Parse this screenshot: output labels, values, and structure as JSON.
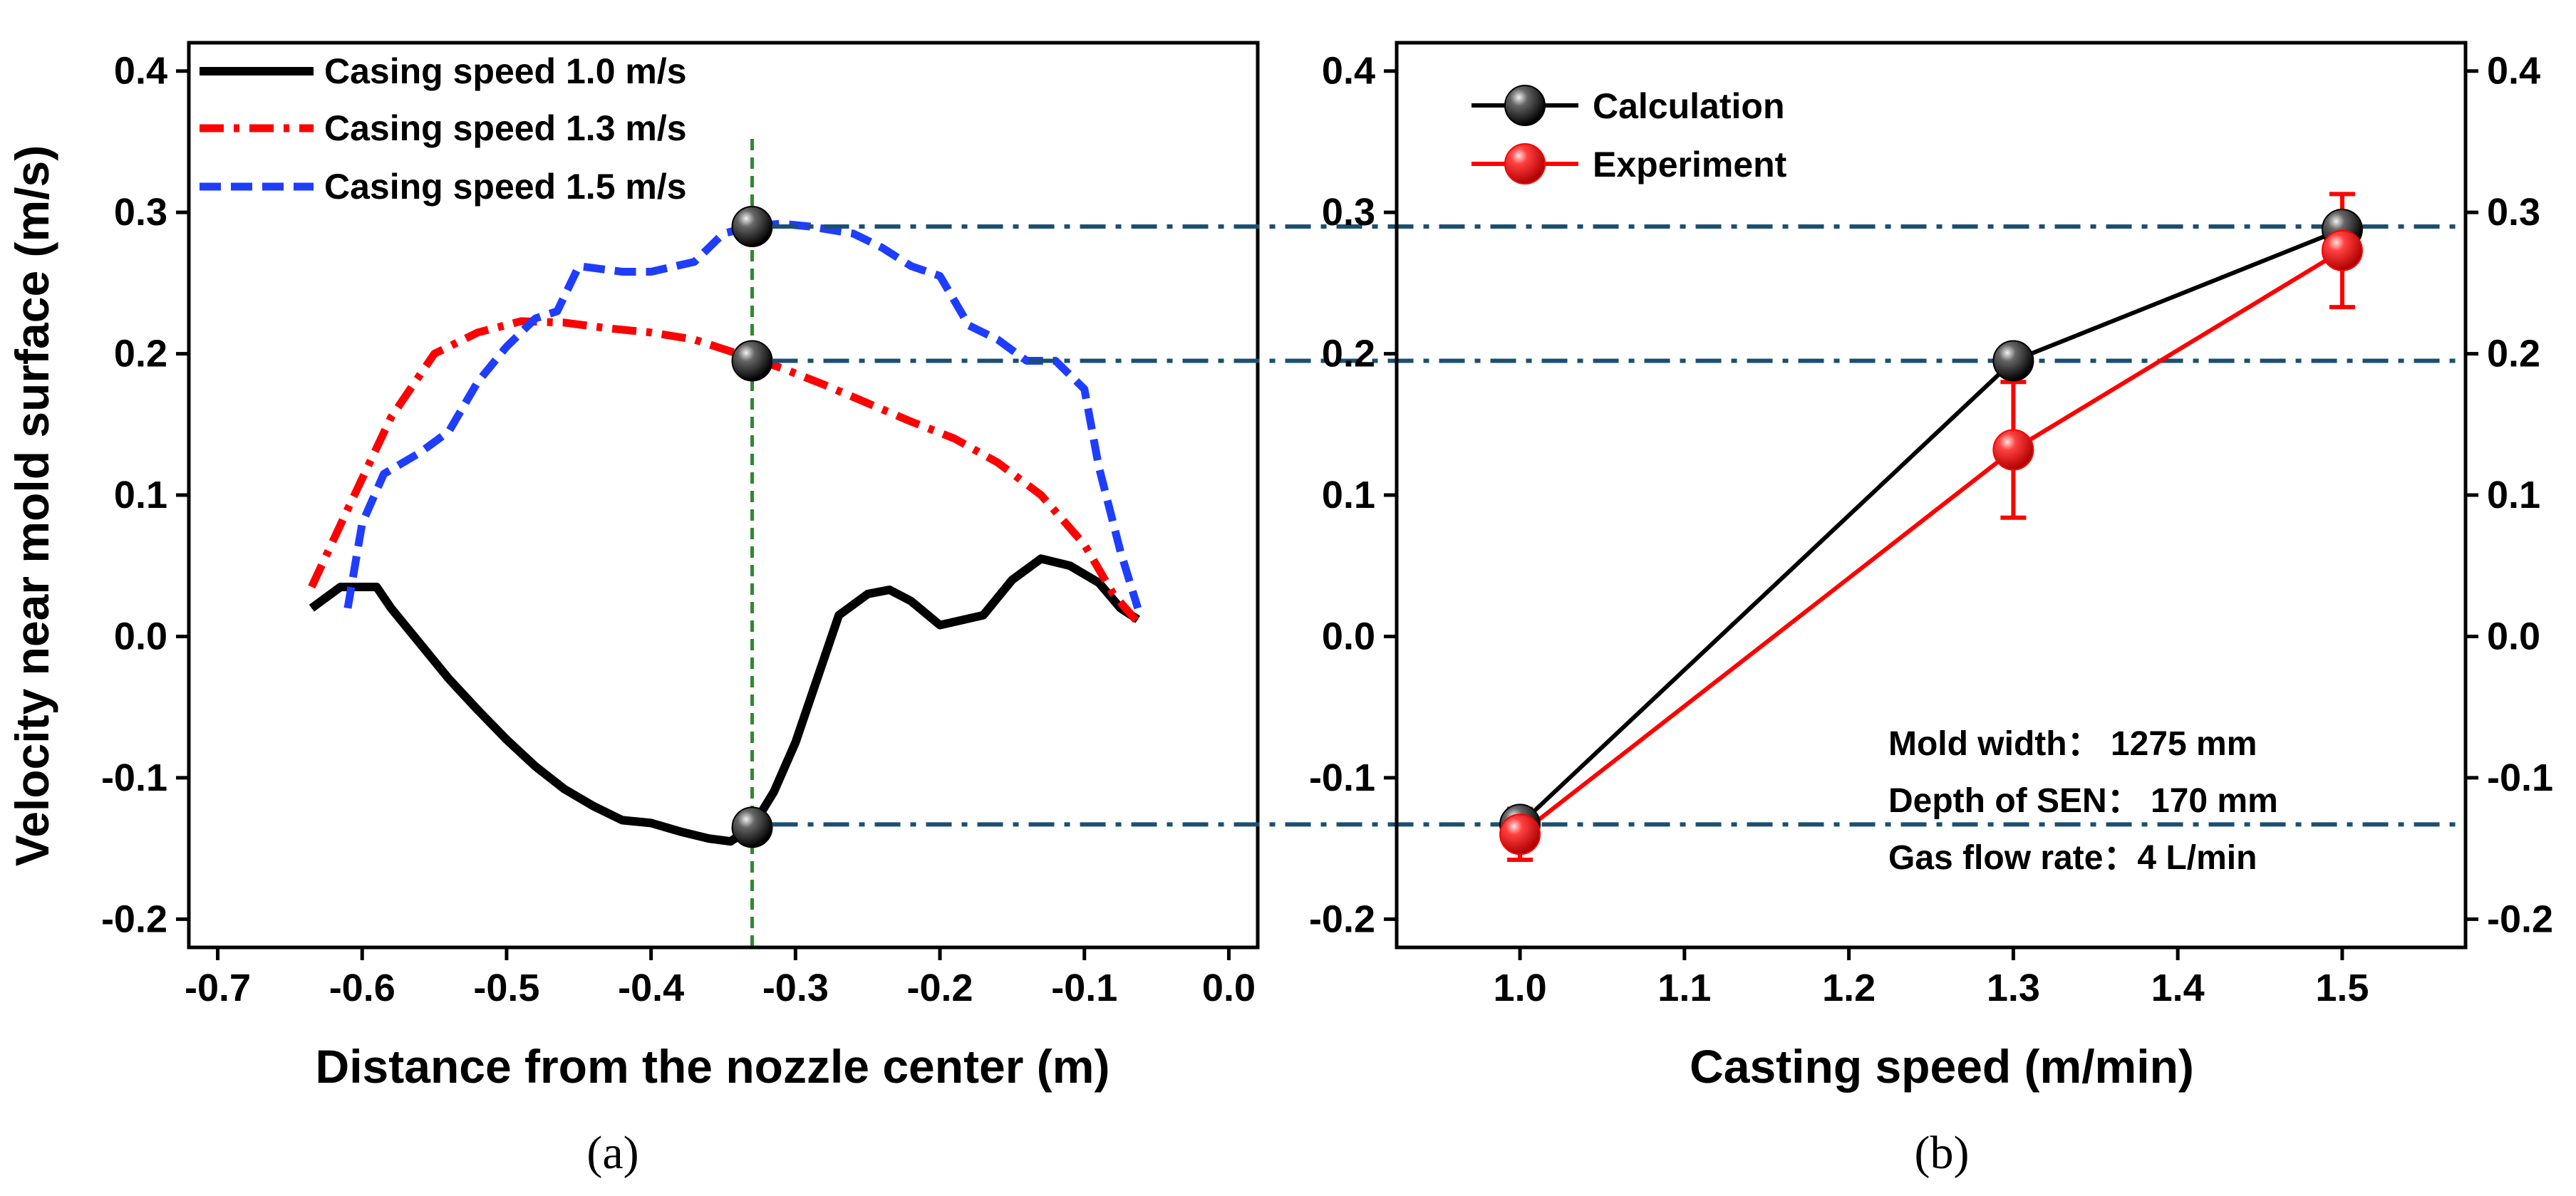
{
  "colors": {
    "black": "#000000",
    "red": "#ff0000",
    "blue": "#1f3dff",
    "green_guide": "#2e8b2e",
    "dashdot_guide": "#1b4f72"
  },
  "panels": {
    "a": {
      "label": "(a)",
      "xlabel": "Distance from the nozzle center (m)",
      "ylabel": "Velocity near mold surface (m/s)"
    },
    "b": {
      "label": "(b)",
      "xlabel": "Casting speed (m/min)",
      "annotations": [
        "Mold width： 1275 mm",
        "Depth of SEN： 170 mm",
        "Gas flow rate：4 L/min"
      ]
    }
  },
  "chart_data": [
    {
      "type": "line",
      "panel": "a",
      "xlabel": "Distance from the nozzle center (m)",
      "ylabel": "Velocity near mold surface (m/s)",
      "xlim": [
        -0.72,
        0.02
      ],
      "ylim": [
        -0.22,
        0.42
      ],
      "xticks": [
        "-0.7",
        "-0.6",
        "-0.5",
        "-0.4",
        "-0.3",
        "-0.2",
        "-0.1",
        "0.0"
      ],
      "yticks": [
        "-0.2",
        "-0.1",
        "0.0",
        "0.1",
        "0.2",
        "0.3",
        "0.4"
      ],
      "legend_position": "top-left",
      "vertical_guide_x": -0.33,
      "series": [
        {
          "name": "Casing speed 1.0 m/s",
          "style": "solid",
          "color": "#000000",
          "x": [
            -0.635,
            -0.615,
            -0.59,
            -0.58,
            -0.56,
            -0.54,
            -0.52,
            -0.5,
            -0.48,
            -0.46,
            -0.44,
            -0.42,
            -0.4,
            -0.38,
            -0.36,
            -0.345,
            -0.33,
            -0.315,
            -0.3,
            -0.285,
            -0.27,
            -0.25,
            -0.235,
            -0.22,
            -0.2,
            -0.17,
            -0.15,
            -0.13,
            -0.11,
            -0.09,
            -0.075,
            -0.063
          ],
          "y": [
            0.02,
            0.035,
            0.035,
            0.02,
            -0.005,
            -0.03,
            -0.052,
            -0.073,
            -0.092,
            -0.108,
            -0.12,
            -0.13,
            -0.132,
            -0.138,
            -0.143,
            -0.145,
            -0.135,
            -0.11,
            -0.075,
            -0.03,
            0.015,
            0.03,
            0.033,
            0.025,
            0.008,
            0.015,
            0.04,
            0.055,
            0.05,
            0.038,
            0.02,
            0.012
          ]
        },
        {
          "name": "Casing speed 1.3 m/s",
          "style": "dashdot",
          "color": "#ff0000",
          "x": [
            -0.635,
            -0.61,
            -0.58,
            -0.55,
            -0.52,
            -0.49,
            -0.46,
            -0.43,
            -0.4,
            -0.37,
            -0.34,
            -0.31,
            -0.28,
            -0.25,
            -0.22,
            -0.19,
            -0.16,
            -0.13,
            -0.1,
            -0.08,
            -0.063
          ],
          "y": [
            0.035,
            0.09,
            0.155,
            0.2,
            0.215,
            0.223,
            0.222,
            0.218,
            0.215,
            0.21,
            0.2,
            0.19,
            0.178,
            0.165,
            0.152,
            0.14,
            0.123,
            0.1,
            0.065,
            0.03,
            0.01
          ]
        },
        {
          "name": "Casing speed 1.5 m/s",
          "style": "dashed",
          "color": "#1f3dff",
          "x": [
            -0.61,
            -0.6,
            -0.585,
            -0.56,
            -0.54,
            -0.52,
            -0.5,
            -0.48,
            -0.465,
            -0.45,
            -0.42,
            -0.4,
            -0.37,
            -0.35,
            -0.33,
            -0.31,
            -0.29,
            -0.26,
            -0.24,
            -0.22,
            -0.2,
            -0.18,
            -0.16,
            -0.14,
            -0.12,
            -0.1,
            -0.09,
            -0.075,
            -0.063
          ],
          "y": [
            0.02,
            0.08,
            0.115,
            0.13,
            0.145,
            0.18,
            0.205,
            0.225,
            0.23,
            0.262,
            0.258,
            0.258,
            0.265,
            0.285,
            0.29,
            0.292,
            0.29,
            0.285,
            0.275,
            0.262,
            0.255,
            0.22,
            0.21,
            0.195,
            0.195,
            0.175,
            0.12,
            0.06,
            0.02
          ]
        }
      ],
      "highlighted_points": [
        {
          "x": -0.33,
          "y": 0.29
        },
        {
          "x": -0.33,
          "y": 0.195
        },
        {
          "x": -0.33,
          "y": -0.135
        }
      ]
    },
    {
      "type": "line",
      "panel": "b",
      "xlabel": "Casting speed (m/min)",
      "ylabel": "",
      "xlim": [
        0.925,
        1.575
      ],
      "ylim": [
        -0.22,
        0.42
      ],
      "xticks": [
        "1.0",
        "1.1",
        "1.2",
        "1.3",
        "1.4",
        "1.5"
      ],
      "yticks": [
        "-0.2",
        "-0.1",
        "0.0",
        "0.1",
        "0.2",
        "0.3",
        "0.4"
      ],
      "legend_position": "top-left",
      "horizontal_guides_y": [
        0.29,
        0.195,
        -0.133
      ],
      "series": [
        {
          "name": "Calculation",
          "color": "#000000",
          "x": [
            1.0,
            1.3,
            1.5
          ],
          "y": [
            -0.133,
            0.195,
            0.288
          ]
        },
        {
          "name": "Experiment",
          "color": "#ff0000",
          "x": [
            1.0,
            1.3,
            1.5
          ],
          "y": [
            -0.14,
            0.132,
            0.273
          ],
          "error": [
            0.018,
            0.048,
            0.04
          ]
        }
      ]
    }
  ]
}
